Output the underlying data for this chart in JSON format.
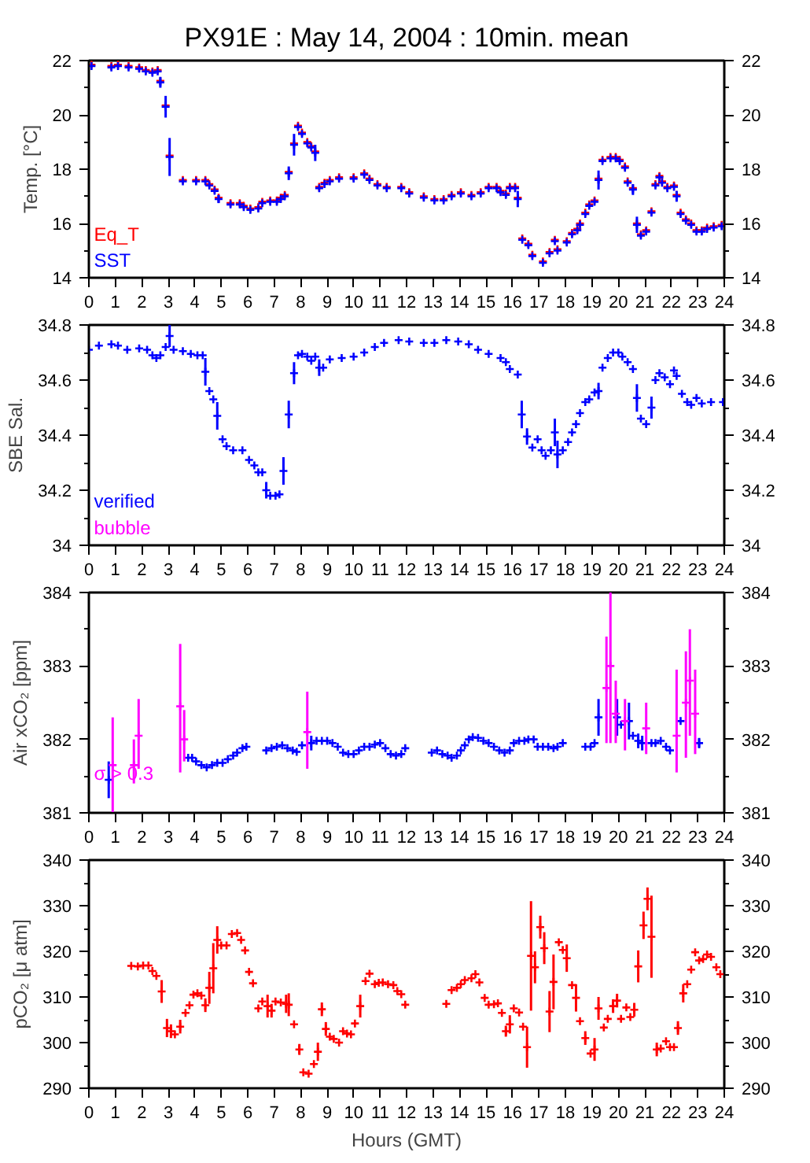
{
  "chart_data": [
    {
      "type": "scatter",
      "title": "PX91E : May 14, 2004 : 10min. mean",
      "ylabel": "Temp. [°C]",
      "xlim": [
        0,
        24
      ],
      "xticks": [
        0,
        1,
        2,
        3,
        4,
        5,
        6,
        7,
        8,
        9,
        10,
        11,
        12,
        13,
        14,
        15,
        16,
        17,
        18,
        19,
        20,
        21,
        22,
        23,
        24
      ],
      "ylim": [
        14,
        22
      ],
      "yticks": [
        14,
        16,
        18,
        20,
        22
      ],
      "y2lim": [
        14,
        22
      ],
      "y2ticks": [
        14,
        16,
        18,
        20,
        22
      ],
      "grid": false,
      "legend": "bottom left",
      "marker": "cross",
      "x": [
        0.1,
        0.85,
        1.1,
        1.5,
        1.9,
        2.15,
        2.4,
        2.6,
        2.7,
        2.9,
        3.05,
        3.55,
        4.05,
        4.4,
        4.55,
        4.75,
        4.9,
        5.35,
        5.7,
        5.85,
        6.1,
        6.4,
        6.55,
        6.85,
        7.1,
        7.25,
        7.4,
        7.55,
        7.75,
        7.9,
        8.05,
        8.25,
        8.4,
        8.55,
        8.7,
        8.9,
        9.1,
        9.45,
        10.0,
        10.4,
        10.6,
        10.9,
        11.25,
        11.8,
        12.1,
        12.65,
        13.05,
        13.4,
        13.7,
        14.05,
        14.45,
        14.8,
        15.1,
        15.4,
        15.55,
        15.75,
        15.9,
        16.1,
        16.2,
        16.37,
        16.6,
        16.75,
        17.15,
        17.4,
        17.6,
        17.7,
        18.05,
        18.25,
        18.45,
        18.55,
        18.75,
        18.9,
        19.1,
        19.25,
        19.4,
        19.7,
        19.9,
        20.05,
        20.25,
        20.35,
        20.55,
        20.7,
        20.85,
        21.05,
        21.25,
        21.4,
        21.55,
        21.65,
        21.85,
        22.1,
        22.2,
        22.35,
        22.55,
        22.75,
        22.95,
        23.15,
        23.35,
        23.6,
        23.9
      ],
      "series": [
        {
          "name": "Eq_T",
          "color": "#ff0000",
          "values": [
            21.85,
            21.8,
            21.85,
            21.8,
            21.75,
            21.65,
            21.6,
            21.65,
            21.25,
            20.35,
            18.5,
            17.6,
            17.6,
            17.6,
            17.45,
            17.25,
            16.95,
            16.75,
            16.75,
            16.65,
            16.55,
            16.6,
            16.8,
            16.85,
            16.85,
            16.95,
            17.05,
            17.9,
            18.95,
            19.6,
            19.35,
            19.0,
            18.85,
            18.65,
            17.35,
            17.5,
            17.6,
            17.7,
            17.7,
            17.85,
            17.65,
            17.45,
            17.35,
            17.35,
            17.15,
            17.0,
            16.9,
            16.9,
            17.05,
            17.15,
            17.05,
            17.15,
            17.35,
            17.35,
            17.2,
            17.1,
            17.35,
            17.35,
            16.95,
            15.45,
            15.25,
            14.85,
            14.6,
            14.95,
            15.4,
            15.05,
            15.35,
            15.65,
            15.8,
            16.0,
            16.4,
            16.7,
            16.85,
            17.65,
            18.35,
            18.45,
            18.45,
            18.35,
            18.1,
            17.55,
            17.3,
            16.0,
            15.6,
            15.75,
            16.45,
            17.45,
            17.75,
            17.55,
            17.35,
            17.4,
            17.05,
            16.4,
            16.15,
            16.0,
            15.75,
            15.75,
            15.85,
            15.9,
            15.95
          ]
        },
        {
          "name": "SST",
          "color": "#0000ff",
          "values": [
            21.8,
            21.75,
            21.8,
            21.75,
            21.7,
            21.6,
            21.55,
            21.6,
            21.2,
            20.3,
            18.45,
            17.55,
            17.55,
            17.55,
            17.4,
            17.2,
            16.9,
            16.7,
            16.7,
            16.6,
            16.5,
            16.55,
            16.75,
            16.8,
            16.8,
            16.9,
            17.0,
            17.85,
            18.9,
            19.55,
            19.3,
            18.95,
            18.8,
            18.6,
            17.3,
            17.45,
            17.55,
            17.65,
            17.65,
            17.8,
            17.6,
            17.4,
            17.3,
            17.3,
            17.1,
            16.95,
            16.85,
            16.85,
            17.0,
            17.1,
            17.0,
            17.1,
            17.3,
            17.3,
            17.15,
            17.05,
            17.3,
            17.3,
            16.9,
            15.4,
            15.2,
            14.8,
            14.55,
            14.9,
            15.35,
            15.0,
            15.3,
            15.6,
            15.75,
            15.95,
            16.35,
            16.65,
            16.8,
            17.6,
            18.3,
            18.4,
            18.4,
            18.3,
            18.05,
            17.5,
            17.25,
            15.95,
            15.55,
            15.7,
            16.4,
            17.4,
            17.7,
            17.5,
            17.3,
            17.35,
            17.0,
            16.35,
            16.1,
            15.95,
            15.7,
            15.7,
            15.8,
            15.85,
            15.9
          ],
          "errors": [
            null,
            null,
            null,
            null,
            null,
            null,
            null,
            null,
            0.2,
            0.4,
            0.7,
            null,
            null,
            null,
            null,
            null,
            0.15,
            null,
            null,
            null,
            null,
            null,
            null,
            null,
            null,
            null,
            null,
            0.25,
            0.4,
            null,
            null,
            null,
            null,
            0.3,
            null,
            null,
            null,
            null,
            null,
            null,
            null,
            null,
            null,
            null,
            null,
            null,
            null,
            null,
            null,
            null,
            null,
            null,
            null,
            null,
            null,
            null,
            null,
            null,
            0.3,
            null,
            null,
            null,
            null,
            null,
            null,
            null,
            null,
            null,
            null,
            null,
            null,
            null,
            null,
            0.35,
            null,
            null,
            null,
            null,
            null,
            null,
            0.2,
            0.3,
            null,
            null,
            null,
            null,
            null,
            null,
            null,
            null,
            0.2,
            null,
            null,
            null,
            null,
            null,
            null,
            null,
            null
          ]
        }
      ]
    },
    {
      "type": "scatter",
      "ylabel": "SBE Sal.",
      "xlim": [
        0,
        24
      ],
      "xticks": [
        0,
        1,
        2,
        3,
        4,
        5,
        6,
        7,
        8,
        9,
        10,
        11,
        12,
        13,
        14,
        15,
        16,
        17,
        18,
        19,
        20,
        21,
        22,
        23,
        24
      ],
      "ylim": [
        34,
        34.8
      ],
      "yticks": [
        34,
        34.2,
        34.4,
        34.6,
        34.8
      ],
      "y2lim": [
        34,
        34.8
      ],
      "y2ticks": [
        34,
        34.2,
        34.4,
        34.6,
        34.8
      ],
      "grid": false,
      "legend": "bottom left",
      "marker": "cross",
      "series": [
        {
          "name": "verified",
          "color": "#0000ff",
          "x": [
            0,
            0.38,
            0.85,
            1.1,
            1.45,
            1.9,
            2.2,
            2.4,
            2.55,
            2.7,
            2.9,
            3.05,
            3.2,
            3.55,
            3.85,
            4.1,
            4.3,
            4.4,
            4.55,
            4.7,
            4.85,
            5.05,
            5.2,
            5.45,
            5.8,
            6.05,
            6.25,
            6.4,
            6.55,
            6.7,
            6.85,
            7.05,
            7.2,
            7.35,
            7.55,
            7.75,
            7.9,
            8.05,
            8.25,
            8.4,
            8.55,
            8.7,
            8.85,
            9.1,
            9.55,
            10.0,
            10.4,
            10.8,
            11.15,
            11.7,
            12.1,
            12.65,
            13.05,
            13.5,
            13.95,
            14.35,
            14.7,
            15.1,
            15.55,
            15.75,
            15.9,
            16.2,
            16.35,
            16.55,
            16.75,
            16.95,
            17.1,
            17.25,
            17.45,
            17.6,
            17.7,
            17.9,
            18.1,
            18.25,
            18.4,
            18.55,
            18.75,
            18.9,
            19.1,
            19.25,
            19.4,
            19.6,
            19.8,
            20.0,
            20.15,
            20.35,
            20.55,
            20.7,
            20.85,
            21.05,
            21.25,
            21.4,
            21.55,
            21.75,
            21.95,
            22.1,
            22.2,
            22.4,
            22.6,
            22.75,
            22.95,
            23.15,
            23.5,
            23.95
          ],
          "values": [
            34.71,
            34.725,
            34.73,
            34.725,
            34.71,
            34.715,
            34.71,
            34.69,
            34.68,
            34.69,
            34.72,
            34.76,
            34.71,
            34.705,
            34.695,
            34.69,
            34.69,
            34.63,
            34.56,
            34.53,
            34.47,
            34.385,
            34.36,
            34.345,
            34.345,
            34.31,
            34.29,
            34.265,
            34.265,
            34.2,
            34.18,
            34.18,
            34.185,
            34.27,
            34.475,
            34.625,
            34.69,
            34.695,
            34.685,
            34.67,
            34.685,
            34.645,
            34.645,
            34.675,
            34.68,
            34.685,
            34.7,
            34.72,
            34.735,
            34.745,
            34.74,
            34.735,
            34.735,
            34.745,
            34.74,
            34.73,
            34.71,
            34.695,
            34.68,
            34.665,
            34.64,
            34.62,
            34.475,
            34.395,
            34.355,
            34.385,
            34.345,
            34.325,
            34.345,
            34.41,
            34.33,
            34.345,
            34.375,
            34.41,
            34.44,
            34.48,
            34.52,
            34.53,
            34.555,
            34.56,
            34.645,
            34.68,
            34.7,
            34.7,
            34.685,
            34.665,
            34.64,
            34.535,
            34.46,
            34.44,
            34.5,
            34.6,
            34.625,
            34.61,
            34.585,
            34.635,
            34.615,
            34.55,
            34.52,
            34.51,
            34.535,
            34.515,
            34.52,
            34.52
          ],
          "errors": [
            null,
            null,
            null,
            null,
            null,
            null,
            null,
            null,
            null,
            null,
            null,
            0.04,
            null,
            null,
            null,
            null,
            null,
            0.05,
            null,
            null,
            0.05,
            null,
            null,
            null,
            null,
            null,
            null,
            null,
            null,
            0.03,
            null,
            null,
            null,
            0.05,
            0.05,
            0.04,
            null,
            null,
            null,
            null,
            null,
            0.03,
            null,
            null,
            null,
            null,
            null,
            null,
            null,
            null,
            null,
            null,
            null,
            null,
            null,
            null,
            null,
            null,
            null,
            null,
            null,
            null,
            0.05,
            0.03,
            null,
            null,
            null,
            null,
            null,
            0.05,
            0.05,
            null,
            null,
            null,
            null,
            null,
            null,
            null,
            null,
            0.03,
            null,
            null,
            null,
            null,
            null,
            null,
            null,
            0.05,
            null,
            null,
            0.04,
            null,
            null,
            null,
            null,
            null,
            null,
            null,
            null,
            null,
            null,
            null,
            null,
            null
          ]
        },
        {
          "name": "bubble",
          "color": "#ff00ff"
        }
      ]
    },
    {
      "type": "scatter",
      "ylabel": "Air xCO₂ [ppm]",
      "xlim": [
        0,
        24
      ],
      "xticks": [
        0,
        1,
        2,
        3,
        4,
        5,
        6,
        7,
        8,
        9,
        10,
        11,
        12,
        13,
        14,
        15,
        16,
        17,
        18,
        19,
        20,
        21,
        22,
        23,
        24
      ],
      "ylim": [
        381,
        384
      ],
      "yticks": [
        381,
        382,
        383,
        384
      ],
      "y2lim": [
        381,
        384
      ],
      "y2ticks": [
        381,
        382,
        383,
        384
      ],
      "grid": false,
      "marker": "cross",
      "annotations": [
        "σ > 0.3"
      ],
      "series": [
        {
          "color": "#0000ff",
          "x": [
            0.75,
            3.75,
            3.9,
            4.05,
            4.25,
            4.45,
            4.65,
            4.85,
            5.05,
            5.25,
            5.45,
            5.6,
            5.8,
            5.95,
            6.7,
            6.9,
            7.1,
            7.3,
            7.5,
            7.7,
            7.85,
            8.05,
            8.4,
            8.6,
            8.8,
            9.0,
            9.2,
            9.4,
            9.6,
            9.8,
            10.0,
            10.2,
            10.4,
            10.6,
            10.8,
            11.0,
            11.2,
            11.4,
            11.6,
            11.8,
            11.95,
            12.95,
            13.15,
            13.35,
            13.55,
            13.7,
            13.9,
            14.05,
            14.2,
            14.35,
            14.5,
            14.7,
            14.9,
            15.1,
            15.3,
            15.5,
            15.7,
            15.9,
            16.05,
            16.25,
            16.45,
            16.6,
            16.8,
            16.95,
            17.15,
            17.35,
            17.55,
            17.7,
            17.9,
            18.75,
            18.95,
            19.1,
            19.25,
            19.95,
            20.1,
            20.4,
            20.55,
            20.75,
            20.9,
            21.25,
            21.4,
            21.6,
            21.8,
            21.95,
            22.35,
            23.05
          ],
          "values": [
            381.45,
            381.75,
            381.75,
            381.7,
            381.65,
            381.62,
            381.65,
            381.68,
            381.68,
            381.73,
            381.78,
            381.82,
            381.88,
            381.9,
            381.85,
            381.88,
            381.9,
            381.92,
            381.88,
            381.85,
            381.83,
            381.92,
            381.95,
            381.98,
            381.98,
            381.98,
            381.95,
            381.9,
            381.82,
            381.8,
            381.8,
            381.85,
            381.9,
            381.9,
            381.93,
            381.95,
            381.88,
            381.8,
            381.78,
            381.8,
            381.88,
            381.82,
            381.85,
            381.8,
            381.78,
            381.75,
            381.78,
            381.85,
            381.92,
            382.0,
            382.03,
            382.02,
            381.98,
            381.95,
            381.9,
            381.85,
            381.82,
            381.85,
            381.95,
            381.98,
            381.98,
            382.0,
            382.0,
            381.9,
            381.9,
            381.9,
            381.88,
            381.9,
            381.95,
            381.9,
            381.9,
            381.95,
            382.3,
            382.3,
            382.2,
            382.25,
            382.05,
            381.98,
            381.95,
            381.95,
            381.95,
            381.98,
            381.9,
            381.85,
            382.25,
            381.95
          ],
          "errors": [
            0.25,
            null,
            null,
            null,
            null,
            null,
            null,
            null,
            null,
            null,
            null,
            null,
            null,
            null,
            null,
            null,
            null,
            null,
            null,
            null,
            null,
            null,
            0.1,
            null,
            null,
            null,
            null,
            null,
            null,
            null,
            null,
            null,
            null,
            null,
            null,
            null,
            null,
            null,
            null,
            null,
            null,
            null,
            null,
            null,
            null,
            null,
            null,
            null,
            null,
            null,
            null,
            null,
            null,
            null,
            null,
            null,
            null,
            null,
            null,
            null,
            null,
            null,
            null,
            null,
            null,
            null,
            null,
            null,
            null,
            null,
            null,
            null,
            0.25,
            0.25,
            null,
            0.25,
            null,
            0.1,
            0.1,
            null,
            null,
            null,
            null,
            null,
            null,
            0.07
          ]
        },
        {
          "color": "#ff00ff",
          "x": [
            0.9,
            1.7,
            1.88,
            3.45,
            3.6,
            8.25,
            19.55,
            19.7,
            19.9,
            20.25,
            21.05,
            22.2,
            22.55,
            22.7,
            22.9
          ],
          "values": [
            381.65,
            381.65,
            382.05,
            382.45,
            382.0,
            382.1,
            382.7,
            383.0,
            382.35,
            382.25,
            382.15,
            382.05,
            382.5,
            382.8,
            382.35
          ],
          "errors": [
            [
              381.0,
              382.3
            ],
            [
              381.4,
              382.0
            ],
            [
              381.6,
              382.55
            ],
            [
              381.55,
              383.3
            ],
            [
              381.7,
              382.4
            ],
            [
              381.6,
              382.65
            ],
            [
              381.95,
              383.4
            ],
            [
              381.95,
              384.0
            ],
            [
              381.95,
              382.8
            ],
            [
              381.85,
              382.55
            ],
            [
              381.8,
              382.5
            ],
            [
              381.55,
              382.95
            ],
            [
              381.75,
              383.2
            ],
            [
              382.05,
              383.5
            ],
            [
              381.8,
              382.95
            ]
          ]
        }
      ]
    },
    {
      "type": "scatter",
      "ylabel": "pCO₂ [μ atm]",
      "xlabel": "Hours (GMT)",
      "xlim": [
        0,
        24
      ],
      "xticks": [
        0,
        1,
        2,
        3,
        4,
        5,
        6,
        7,
        8,
        9,
        10,
        11,
        12,
        13,
        14,
        15,
        16,
        17,
        18,
        19,
        20,
        21,
        22,
        23,
        24
      ],
      "ylim": [
        290,
        340
      ],
      "yticks": [
        290,
        300,
        310,
        320,
        330,
        340
      ],
      "y2lim": [
        290,
        340
      ],
      "y2ticks": [
        290,
        300,
        310,
        320,
        330,
        340
      ],
      "grid": false,
      "marker": "cross",
      "series": [
        {
          "color": "#ff0000",
          "x": [
            1.6,
            1.85,
            2.05,
            2.25,
            2.4,
            2.55,
            2.75,
            2.95,
            3.1,
            3.25,
            3.45,
            3.65,
            3.8,
            3.95,
            4.1,
            4.25,
            4.4,
            4.55,
            4.7,
            4.85,
            5.0,
            5.2,
            5.4,
            5.6,
            5.75,
            5.9,
            6.05,
            6.2,
            6.4,
            6.55,
            6.75,
            6.9,
            7.05,
            7.25,
            7.45,
            7.55,
            7.75,
            7.95,
            8.1,
            8.3,
            8.5,
            8.65,
            8.8,
            8.95,
            9.1,
            9.25,
            9.45,
            9.6,
            9.75,
            9.9,
            10.05,
            10.25,
            10.45,
            10.6,
            10.8,
            10.95,
            11.1,
            11.3,
            11.5,
            11.65,
            11.8,
            11.95,
            13.5,
            13.7,
            13.9,
            14.05,
            14.2,
            14.45,
            14.6,
            14.75,
            14.95,
            15.1,
            15.3,
            15.45,
            15.6,
            15.75,
            15.9,
            16.05,
            16.25,
            16.4,
            16.55,
            16.7,
            16.85,
            17.05,
            17.2,
            17.4,
            17.55,
            17.75,
            17.9,
            18.05,
            18.25,
            18.4,
            18.55,
            18.75,
            18.95,
            19.1,
            19.25,
            19.45,
            19.6,
            19.8,
            19.95,
            20.1,
            20.3,
            20.45,
            20.6,
            20.75,
            20.95,
            21.1,
            21.25,
            21.45,
            21.6,
            21.8,
            21.95,
            22.1,
            22.25,
            22.45,
            22.6,
            22.75,
            22.9,
            23.05,
            23.2,
            23.35,
            23.5,
            23.7,
            23.85
          ],
          "values": [
            316.8,
            316.7,
            316.9,
            316.9,
            315.7,
            314.6,
            311.2,
            303.2,
            302.5,
            301.8,
            303.5,
            306.5,
            308.2,
            310.5,
            310.8,
            310.3,
            308.2,
            312,
            316.3,
            322.5,
            321.3,
            321.3,
            323.8,
            324,
            322.5,
            320.2,
            315.5,
            313,
            307.5,
            309,
            308,
            307,
            309,
            308.8,
            308.5,
            308.3,
            304,
            298.5,
            293.5,
            293.2,
            295.3,
            298,
            307.3,
            303,
            301.3,
            300.8,
            300,
            302.5,
            302,
            301.8,
            304.2,
            308,
            313.5,
            315.1,
            312.8,
            313.1,
            313.2,
            312.8,
            312.6,
            311.3,
            310.6,
            308.3,
            308.5,
            311.5,
            312,
            312.8,
            313.7,
            314.1,
            315.0,
            313.2,
            309.8,
            308.3,
            308.4,
            308.6,
            306.5,
            302.5,
            304,
            307.5,
            306.6,
            303.5,
            299,
            319,
            316.5,
            325.3,
            320.7,
            306.8,
            313.3,
            322,
            320.3,
            318.5,
            312.6,
            309.8,
            304.7,
            301,
            297.6,
            298.5,
            307.5,
            303.3,
            305.2,
            308,
            309.2,
            305.2,
            307.7,
            305.6,
            307.2,
            316.7,
            325.7,
            331.5,
            323.2,
            298.5,
            298.7,
            300.3,
            299,
            299,
            303.2,
            310.8,
            312.8,
            316,
            319.8,
            318,
            318.3,
            319.3,
            318.8,
            316.5,
            315
          ],
          "errors": [
            null,
            null,
            null,
            null,
            null,
            null,
            2.5,
            2,
            1.5,
            null,
            1.5,
            null,
            null,
            null,
            null,
            null,
            1.5,
            3.5,
            5.5,
            3,
            null,
            null,
            null,
            null,
            null,
            null,
            null,
            null,
            null,
            null,
            2.5,
            1.5,
            null,
            null,
            2,
            2.5,
            null,
            1.2,
            null,
            null,
            null,
            2,
            1.5,
            1.5,
            null,
            null,
            null,
            null,
            null,
            null,
            null,
            2.5,
            null,
            null,
            null,
            null,
            null,
            null,
            null,
            null,
            null,
            null,
            null,
            null,
            null,
            null,
            null,
            null,
            null,
            null,
            null,
            null,
            null,
            null,
            null,
            1.2,
            2,
            null,
            null,
            null,
            4.5,
            12,
            3.5,
            2.5,
            3.5,
            4.5,
            6,
            null,
            null,
            3,
            null,
            3,
            null,
            1.5,
            null,
            2.5,
            2.5,
            null,
            null,
            1.5,
            1.5,
            null,
            null,
            null,
            1.5,
            3.5,
            3,
            2.5,
            9,
            1.5,
            null,
            null,
            null,
            null,
            1.5,
            2,
            null,
            null,
            null,
            null,
            null,
            null,
            null,
            null,
            null
          ]
        }
      ]
    }
  ]
}
